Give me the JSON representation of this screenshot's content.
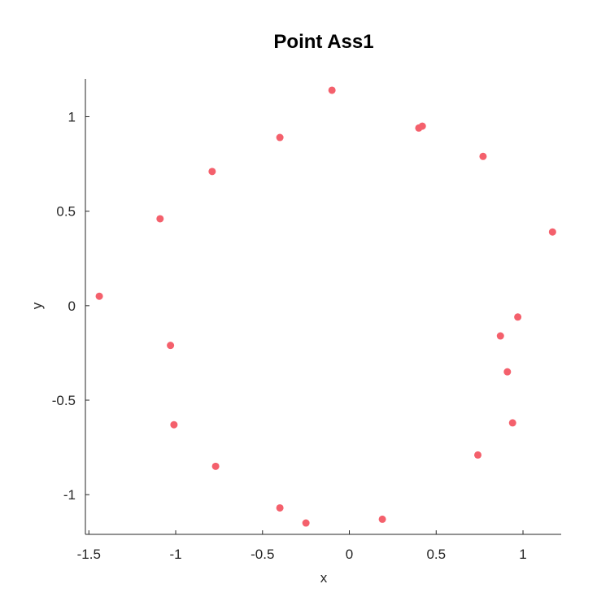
{
  "chart_data": {
    "type": "scatter",
    "title": "Point Ass1",
    "xlabel": "x",
    "ylabel": "y",
    "xlim": [
      -1.52,
      1.22
    ],
    "ylim": [
      -1.21,
      1.2
    ],
    "xticks": [
      -1.5,
      -1,
      -0.5,
      0,
      0.5,
      1
    ],
    "xtick_labels": [
      "-1.5",
      "-1",
      "-0.5",
      "0",
      "0.5",
      "1"
    ],
    "yticks": [
      -1,
      -0.5,
      0,
      0.5,
      1
    ],
    "ytick_labels": [
      "-1",
      "-0.5",
      "0",
      "0.5",
      "1"
    ],
    "grid": false,
    "color": "#f4606c",
    "points": [
      {
        "x": -0.1,
        "y": 1.14
      },
      {
        "x": 0.4,
        "y": 0.94
      },
      {
        "x": 0.42,
        "y": 0.95
      },
      {
        "x": -0.4,
        "y": 0.89
      },
      {
        "x": 0.77,
        "y": 0.79
      },
      {
        "x": -0.79,
        "y": 0.71
      },
      {
        "x": -1.09,
        "y": 0.46
      },
      {
        "x": 1.17,
        "y": 0.39
      },
      {
        "x": -1.44,
        "y": 0.05
      },
      {
        "x": 0.97,
        "y": -0.06
      },
      {
        "x": 0.87,
        "y": -0.16
      },
      {
        "x": -1.03,
        "y": -0.21
      },
      {
        "x": 0.91,
        "y": -0.35
      },
      {
        "x": -1.01,
        "y": -0.63
      },
      {
        "x": 0.94,
        "y": -0.62
      },
      {
        "x": 0.74,
        "y": -0.79
      },
      {
        "x": -0.77,
        "y": -0.85
      },
      {
        "x": -0.4,
        "y": -1.07
      },
      {
        "x": 0.19,
        "y": -1.13
      },
      {
        "x": -0.25,
        "y": -1.15
      }
    ]
  }
}
